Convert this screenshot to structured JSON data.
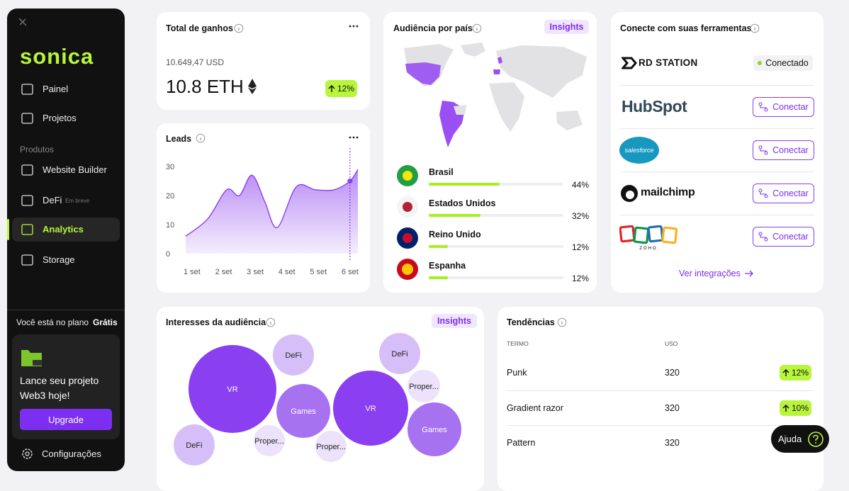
{
  "sidebar": {
    "logo": "sonica",
    "nav": [
      "Painel",
      "Projetos"
    ],
    "section": "Produtos",
    "products": [
      {
        "label": "Website Builder"
      },
      {
        "label": "DeFi",
        "badge": "Em breve"
      },
      {
        "label": "Analytics"
      },
      {
        "label": "Storage"
      }
    ],
    "plan_text": "Você está no plano",
    "plan_name": "Grátis",
    "promo": "Lance seu projeto Web3 hoje!",
    "upgrade": "Upgrade",
    "settings": "Configurações"
  },
  "earnings": {
    "title": "Total de ganhos",
    "usd": "10.649,47 USD",
    "eth": "10.8 ETH",
    "change": "12%"
  },
  "leads": {
    "title": "Leads",
    "type": "line",
    "color": "#8b3ff0",
    "x": [
      0.8,
      1.5,
      2.1,
      2.5,
      2.9,
      3.3,
      3.7,
      4.3,
      4.9,
      5.5,
      6.0,
      6.25
    ],
    "values": [
      6,
      12,
      22,
      20,
      27,
      18,
      9,
      23,
      22,
      22,
      25,
      29
    ],
    "xlim": [
      0.8,
      6.25
    ],
    "xticks": [
      {
        "value": 1,
        "label": "1 set"
      },
      {
        "value": 2,
        "label": "2 set"
      },
      {
        "value": 3,
        "label": "3 set"
      },
      {
        "value": 4,
        "label": "4 set"
      },
      {
        "value": 5,
        "label": "5 set"
      },
      {
        "value": 6,
        "label": "6 set"
      }
    ],
    "ylim": [
      0,
      35
    ],
    "yticks": [
      0,
      10,
      20,
      30
    ]
  },
  "audience": {
    "title": "Audiência por país",
    "insights": "Insights",
    "countries": [
      "Brasil",
      "Estados Unidos",
      "Reino Unido",
      "Espanha"
    ],
    "values": [
      44,
      32,
      12,
      12
    ],
    "value_labels": [
      "44%",
      "32%",
      "12%",
      "12%"
    ],
    "color": "#a6f01f"
  },
  "tools": {
    "title": "Conecte com suas ferramentas",
    "items": [
      {
        "name": "RD STATION",
        "status": "Conectado"
      },
      {
        "name": "HubSpot",
        "status": "Conectar"
      },
      {
        "name": "salesforce",
        "status": "Conectar"
      },
      {
        "name": "mailchimp",
        "status": "Conectar"
      },
      {
        "name": "ZOHO",
        "status": "Conectar"
      }
    ],
    "link": "Ver integrações"
  },
  "interests": {
    "title": "Interesses da audiência",
    "insights": "Insights",
    "labels": [
      "DeFi",
      "VR",
      "Games",
      "Proper...",
      "DeFi",
      "Proper...",
      "DeFi",
      "VR",
      "Proper...",
      "Games"
    ],
    "values": [
      29,
      62,
      38,
      22,
      29,
      22,
      29,
      53,
      23,
      38
    ],
    "colors": [
      "#d6bff8",
      "#8a3ff0",
      "#a772f0",
      "#ece2fb",
      "#d6bff8",
      "#ece2fb",
      "#d6bff8",
      "#8a3ff0",
      "#ece2fb",
      "#a772f0"
    ]
  },
  "trends": {
    "title": "Tendências",
    "columns": [
      "TERMO",
      "USO"
    ],
    "rows": [
      {
        "term": "Punk",
        "usage": 320,
        "change": "12%"
      },
      {
        "term": "Gradient razor",
        "usage": 320,
        "change": "10%"
      },
      {
        "term": "Pattern",
        "usage": 320
      }
    ]
  },
  "help": "Ajuda"
}
